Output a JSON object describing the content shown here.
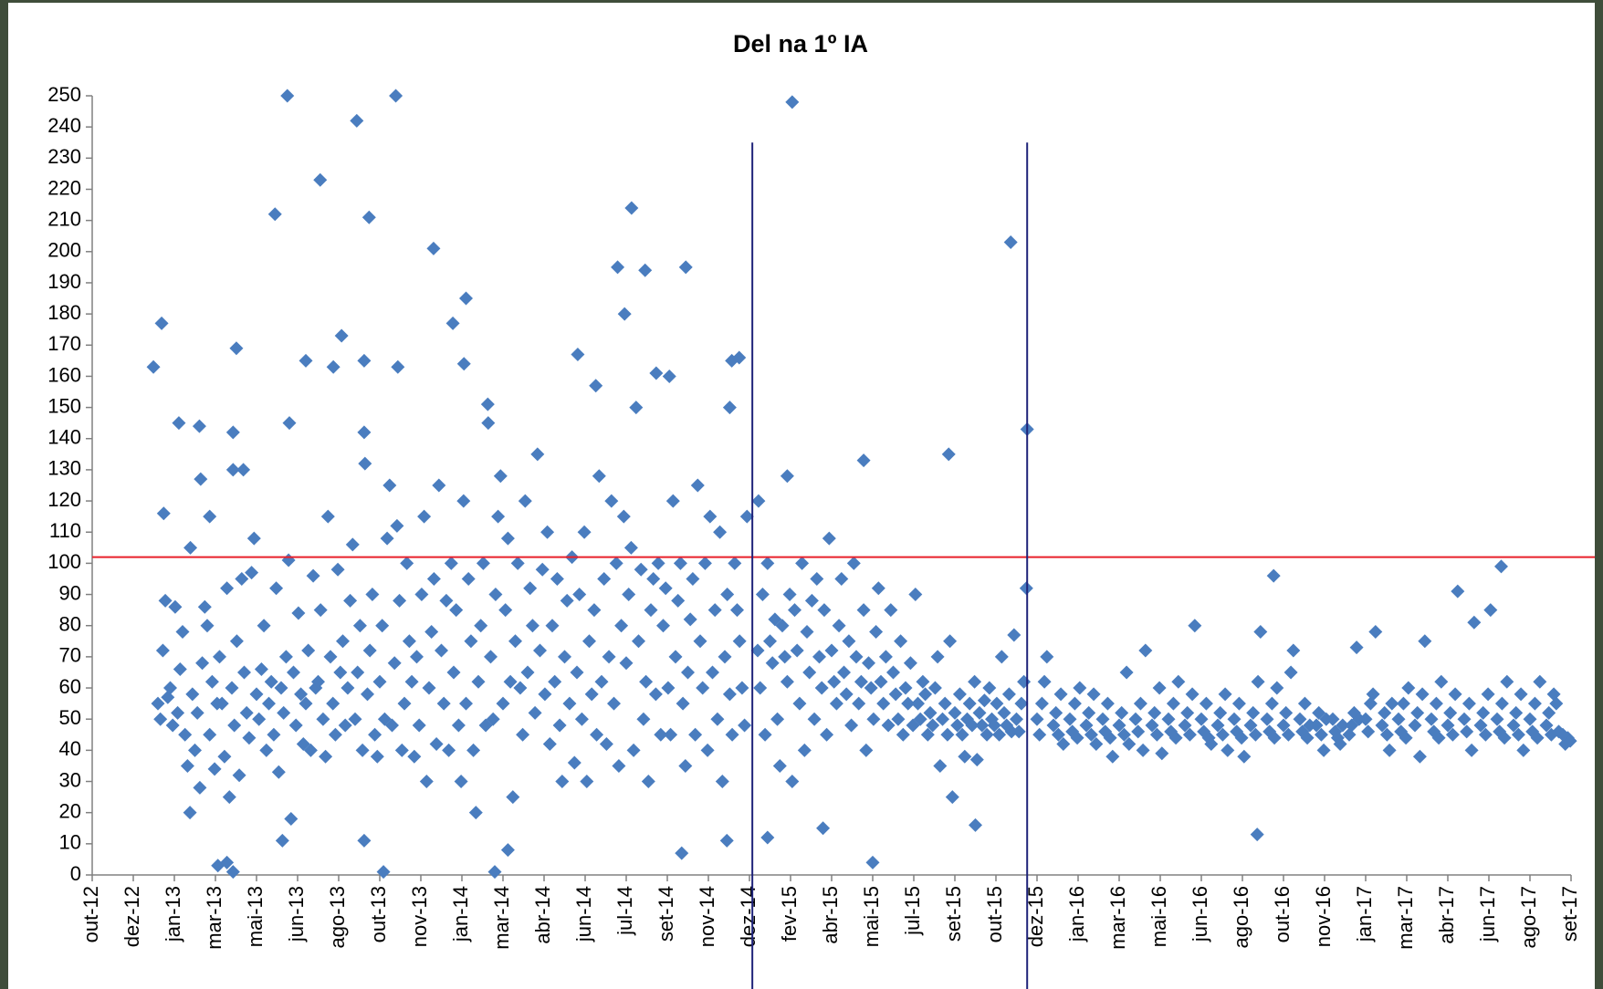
{
  "chart_data": {
    "type": "scatter",
    "title": "Del na 1º IA",
    "color": "#4a7dbf",
    "xlim": [
      0,
      36
    ],
    "xticks": [
      {
        "value": 0,
        "label": "out-12"
      },
      {
        "value": 1,
        "label": "dez-12"
      },
      {
        "value": 2,
        "label": "jan-13"
      },
      {
        "value": 3,
        "label": "mar-13"
      },
      {
        "value": 4,
        "label": "mai-13"
      },
      {
        "value": 5,
        "label": "jun-13"
      },
      {
        "value": 6,
        "label": "ago-13"
      },
      {
        "value": 7,
        "label": "out-13"
      },
      {
        "value": 8,
        "label": "nov-13"
      },
      {
        "value": 9,
        "label": "jan-14"
      },
      {
        "value": 10,
        "label": "mar-14"
      },
      {
        "value": 11,
        "label": "abr-14"
      },
      {
        "value": 12,
        "label": "jun-14"
      },
      {
        "value": 13,
        "label": "jul-14"
      },
      {
        "value": 14,
        "label": "set-14"
      },
      {
        "value": 15,
        "label": "nov-14"
      },
      {
        "value": 16,
        "label": "dez-14"
      },
      {
        "value": 17,
        "label": "fev-15"
      },
      {
        "value": 18,
        "label": "abr-15"
      },
      {
        "value": 19,
        "label": "mai-15"
      },
      {
        "value": 20,
        "label": "jul-15"
      },
      {
        "value": 21,
        "label": "set-15"
      },
      {
        "value": 22,
        "label": "out-15"
      },
      {
        "value": 23,
        "label": "dez-15"
      },
      {
        "value": 24,
        "label": "jan-16"
      },
      {
        "value": 25,
        "label": "mar-16"
      },
      {
        "value": 26,
        "label": "mai-16"
      },
      {
        "value": 27,
        "label": "jun-16"
      },
      {
        "value": 28,
        "label": "ago-16"
      },
      {
        "value": 29,
        "label": "out-16"
      },
      {
        "value": 30,
        "label": "nov-16"
      },
      {
        "value": 31,
        "label": "jan-17"
      },
      {
        "value": 32,
        "label": "mar-17"
      },
      {
        "value": 33,
        "label": "abr-17"
      },
      {
        "value": 34,
        "label": "jun-17"
      },
      {
        "value": 35,
        "label": "ago-17"
      },
      {
        "value": 36,
        "label": "set-17"
      }
    ],
    "ylim": [
      0,
      250
    ],
    "yticks": [
      0,
      10,
      20,
      30,
      40,
      50,
      60,
      70,
      80,
      90,
      100,
      110,
      120,
      130,
      140,
      150,
      160,
      170,
      180,
      190,
      200,
      210,
      220,
      230,
      240,
      250
    ],
    "hlines": [
      {
        "value": 102,
        "color": "#e8202a"
      }
    ],
    "vlines": [
      {
        "value": 16.07,
        "color": "#1f237a"
      },
      {
        "value": 22.76,
        "color": "#1f237a"
      }
    ],
    "vline_top": 235,
    "x": [
      1.49,
      1.69,
      1.74,
      2.11,
      2.61,
      2.64,
      2.39,
      2.86,
      3.43,
      3.43,
      3.68,
      3.51,
      4.45,
      4.75,
      4.8,
      5.2,
      5.55,
      5.87,
      6.07,
      6.44,
      6.62,
      6.74,
      6.62,
      7.39,
      7.44,
      8.31,
      8.78,
      9.1,
      9.05,
      9.63,
      11.82,
      12.26,
      12.79,
      12.96,
      13.13,
      13.46,
      14.45,
      13.73,
      14.05,
      15.57,
      15.75,
      15.52,
      17.04,
      20.85,
      22.36,
      22.76,
      18.78,
      16.92,
      16.22,
      28.76,
      34.3,
      28.36,
      19.0,
      21.5,
      3.06,
      3.28,
      3.43,
      7.09,
      9.8,
      10.12,
      4.63,
      6.62,
      14.35,
      15.45,
      16.44,
      17.79,
      1.6,
      1.66,
      1.72,
      1.78,
      1.84,
      1.9,
      1.96,
      2.02,
      2.08,
      2.14,
      2.2,
      2.26,
      2.32,
      2.38,
      2.44,
      2.5,
      2.56,
      2.62,
      2.68,
      2.74,
      2.8,
      2.86,
      2.92,
      2.98,
      3.04,
      3.1,
      3.16,
      3.22,
      3.28,
      3.34,
      3.4,
      3.46,
      3.52,
      3.58,
      3.64,
      3.7,
      3.76,
      3.82,
      3.88,
      3.94,
      4.0,
      4.06,
      4.12,
      4.18,
      4.24,
      4.3,
      4.36,
      4.42,
      4.48,
      4.54,
      4.6,
      4.66,
      4.72,
      4.78,
      4.84,
      4.9,
      4.96,
      5.02,
      5.08,
      5.14,
      5.2,
      5.26,
      5.32,
      5.38,
      5.44,
      5.5,
      5.56,
      5.62,
      5.68,
      5.74,
      5.8,
      5.86,
      5.92,
      5.98,
      6.04,
      6.1,
      6.16,
      6.22,
      6.28,
      6.34,
      6.4,
      6.46,
      6.52,
      6.58,
      6.64,
      6.7,
      6.76,
      6.82,
      6.88,
      6.94,
      7.0,
      7.06,
      7.12,
      7.18,
      7.24,
      7.3,
      7.36,
      7.42,
      7.48,
      7.54,
      7.6,
      7.66,
      7.72,
      7.78,
      7.84,
      7.9,
      7.96,
      8.02,
      8.08,
      8.14,
      8.2,
      8.26,
      8.32,
      8.38,
      8.44,
      8.5,
      8.56,
      8.62,
      8.68,
      8.74,
      8.8,
      8.86,
      8.92,
      8.98,
      9.04,
      9.1,
      9.16,
      9.22,
      9.28,
      9.34,
      9.4,
      9.46,
      9.52,
      9.58,
      9.64,
      9.7,
      9.76,
      9.82,
      9.88,
      9.94,
      10.0,
      10.06,
      10.12,
      10.18,
      10.24,
      10.3,
      10.36,
      10.42,
      10.48,
      10.54,
      10.6,
      10.66,
      10.72,
      10.78,
      10.84,
      10.9,
      10.96,
      11.02,
      11.08,
      11.14,
      11.2,
      11.26,
      11.32,
      11.38,
      11.44,
      11.5,
      11.56,
      11.62,
      11.68,
      11.74,
      11.8,
      11.86,
      11.92,
      11.98,
      12.04,
      12.1,
      12.16,
      12.22,
      12.28,
      12.34,
      12.4,
      12.46,
      12.52,
      12.58,
      12.64,
      12.7,
      12.76,
      12.82,
      12.88,
      12.94,
      13.0,
      13.06,
      13.12,
      13.18,
      13.24,
      13.3,
      13.36,
      13.42,
      13.48,
      13.54,
      13.6,
      13.66,
      13.72,
      13.78,
      13.84,
      13.9,
      13.96,
      14.02,
      14.08,
      14.14,
      14.2,
      14.26,
      14.32,
      14.38,
      14.44,
      14.5,
      14.56,
      14.62,
      14.68,
      14.74,
      14.8,
      14.86,
      14.92,
      14.98,
      15.04,
      15.1,
      15.16,
      15.22,
      15.28,
      15.34,
      15.4,
      15.46,
      15.52,
      15.58,
      15.64,
      15.7,
      15.76,
      15.82,
      15.88,
      15.94,
      16.2,
      16.26,
      16.32,
      16.38,
      16.44,
      16.5,
      16.56,
      16.62,
      16.68,
      16.74,
      16.8,
      16.86,
      16.92,
      16.98,
      17.04,
      17.1,
      17.16,
      17.22,
      17.28,
      17.34,
      17.4,
      17.46,
      17.52,
      17.58,
      17.64,
      17.7,
      17.76,
      17.82,
      17.88,
      17.94,
      18.0,
      18.06,
      18.12,
      18.18,
      18.24,
      18.3,
      18.36,
      18.42,
      18.48,
      18.54,
      18.6,
      18.66,
      18.72,
      18.78,
      18.84,
      18.9,
      18.96,
      19.02,
      19.08,
      19.14,
      19.2,
      19.26,
      19.32,
      19.38,
      19.44,
      19.5,
      19.56,
      19.62,
      19.68,
      19.74,
      19.8,
      19.86,
      19.92,
      19.98,
      20.04,
      20.1,
      20.16,
      20.22,
      20.28,
      20.34,
      20.4,
      20.46,
      20.52,
      20.58,
      20.64,
      20.7,
      20.76,
      20.82,
      20.88,
      20.94,
      21.0,
      21.06,
      21.12,
      21.18,
      21.24,
      21.3,
      21.36,
      21.42,
      21.48,
      21.54,
      21.6,
      21.66,
      21.72,
      21.78,
      21.84,
      21.9,
      21.96,
      22.02,
      22.08,
      22.14,
      22.2,
      22.26,
      22.32,
      22.38,
      22.44,
      22.5,
      22.56,
      22.62,
      22.68,
      22.74,
      23.0,
      23.06,
      23.12,
      23.18,
      23.24,
      23.4,
      23.46,
      23.52,
      23.58,
      23.64,
      23.8,
      23.86,
      23.92,
      23.98,
      24.04,
      24.2,
      24.26,
      24.32,
      24.38,
      24.44,
      24.6,
      24.66,
      24.72,
      24.78,
      24.84,
      25.0,
      25.06,
      25.12,
      25.18,
      25.24,
      25.4,
      25.46,
      25.52,
      25.58,
      25.64,
      25.8,
      25.86,
      25.92,
      25.98,
      26.04,
      26.2,
      26.26,
      26.32,
      26.38,
      26.44,
      26.6,
      26.66,
      26.72,
      26.78,
      26.84,
      27.0,
      27.06,
      27.12,
      27.18,
      27.24,
      27.4,
      27.46,
      27.52,
      27.58,
      27.64,
      27.8,
      27.86,
      27.92,
      27.98,
      28.04,
      28.2,
      28.26,
      28.32,
      28.38,
      28.44,
      28.6,
      28.66,
      28.72,
      28.78,
      28.84,
      29.0,
      29.06,
      29.12,
      29.18,
      29.24,
      29.4,
      29.46,
      29.52,
      29.58,
      29.64,
      29.8,
      29.86,
      29.92,
      29.98,
      30.04,
      30.2,
      30.26,
      30.32,
      30.38,
      30.44,
      30.6,
      30.66,
      30.72,
      30.78,
      30.84,
      31.0,
      31.06,
      31.12,
      31.18,
      31.24,
      31.4,
      31.46,
      31.52,
      31.58,
      31.64,
      31.8,
      31.86,
      31.92,
      31.98,
      32.04,
      32.2,
      32.26,
      32.32,
      32.38,
      32.44,
      32.6,
      32.66,
      32.72,
      32.78,
      32.84,
      33.0,
      33.06,
      33.12,
      33.18,
      33.24,
      33.4,
      33.46,
      33.52,
      33.58,
      33.64,
      33.8,
      33.86,
      33.92,
      33.98,
      34.04,
      34.2,
      34.26,
      34.32,
      34.38,
      34.44,
      34.6,
      34.66,
      34.72,
      34.78,
      34.84,
      35.0,
      35.06,
      35.12,
      35.18,
      35.24,
      35.4,
      35.46,
      35.52,
      35.58,
      35.64,
      35.8,
      35.86,
      35.92,
      35.98,
      35.7
    ],
    "values": [
      163,
      177,
      116,
      145,
      144,
      127,
      105,
      115,
      142,
      130,
      130,
      169,
      212,
      250,
      145,
      165,
      223,
      163,
      173,
      242,
      165,
      211,
      142,
      250,
      163,
      201,
      177,
      185,
      164,
      151,
      167,
      157,
      195,
      180,
      214,
      194,
      195,
      161,
      160,
      165,
      166,
      150,
      248,
      135,
      203,
      143,
      133,
      128,
      120,
      96,
      99,
      13,
      4,
      16,
      3,
      4,
      1,
      1,
      1,
      8,
      11,
      11,
      7,
      11,
      12,
      15,
      55,
      50,
      72,
      88,
      57,
      60,
      48,
      86,
      52,
      66,
      78,
      45,
      35,
      20,
      58,
      40,
      52,
      28,
      68,
      86,
      80,
      45,
      62,
      34,
      55,
      70,
      55,
      38,
      92,
      25,
      60,
      48,
      75,
      32,
      95,
      65,
      52,
      44,
      97,
      108,
      58,
      50,
      66,
      80,
      40,
      55,
      62,
      45,
      92,
      33,
      60,
      52,
      70,
      101,
      18,
      65,
      48,
      84,
      58,
      42,
      55,
      72,
      40,
      96,
      60,
      62,
      85,
      50,
      38,
      115,
      70,
      55,
      45,
      98,
      65,
      75,
      48,
      60,
      88,
      106,
      50,
      65,
      80,
      40,
      132,
      58,
      72,
      90,
      45,
      38,
      62,
      80,
      50,
      108,
      125,
      48,
      68,
      112,
      88,
      40,
      55,
      100,
      75,
      62,
      38,
      70,
      48,
      90,
      115,
      30,
      60,
      78,
      95,
      42,
      125,
      72,
      55,
      88,
      40,
      100,
      65,
      85,
      48,
      30,
      120,
      55,
      95,
      75,
      40,
      20,
      62,
      80,
      100,
      48,
      145,
      70,
      50,
      90,
      115,
      128,
      55,
      85,
      108,
      62,
      25,
      75,
      100,
      60,
      45,
      120,
      65,
      92,
      80,
      52,
      135,
      72,
      98,
      58,
      110,
      42,
      80,
      62,
      95,
      48,
      30,
      70,
      88,
      55,
      102,
      36,
      65,
      90,
      50,
      110,
      30,
      75,
      58,
      85,
      45,
      128,
      62,
      95,
      42,
      70,
      120,
      55,
      100,
      35,
      80,
      115,
      68,
      90,
      105,
      40,
      150,
      75,
      98,
      50,
      62,
      30,
      85,
      95,
      58,
      100,
      45,
      80,
      92,
      60,
      45,
      120,
      70,
      88,
      100,
      55,
      35,
      65,
      82,
      95,
      45,
      125,
      75,
      60,
      100,
      40,
      115,
      65,
      85,
      50,
      110,
      30,
      70,
      90,
      58,
      45,
      100,
      85,
      75,
      60,
      48,
      115,
      72,
      60,
      90,
      45,
      100,
      75,
      68,
      82,
      50,
      35,
      80,
      70,
      62,
      90,
      30,
      85,
      72,
      55,
      100,
      40,
      78,
      65,
      88,
      50,
      95,
      70,
      60,
      85,
      45,
      108,
      72,
      62,
      55,
      80,
      95,
      65,
      58,
      75,
      48,
      100,
      70,
      55,
      62,
      85,
      40,
      68,
      60,
      50,
      78,
      92,
      62,
      55,
      70,
      48,
      85,
      65,
      58,
      50,
      75,
      45,
      60,
      55,
      68,
      48,
      90,
      55,
      50,
      62,
      58,
      45,
      52,
      48,
      60,
      70,
      35,
      50,
      55,
      45,
      75,
      25,
      52,
      48,
      58,
      45,
      38,
      50,
      55,
      48,
      62,
      37,
      52,
      48,
      56,
      45,
      60,
      50,
      48,
      55,
      45,
      70,
      52,
      48,
      58,
      46,
      77,
      50,
      46,
      55,
      62,
      92,
      50,
      45,
      55,
      62,
      70,
      48,
      52,
      45,
      58,
      42,
      50,
      46,
      55,
      44,
      60,
      48,
      52,
      45,
      58,
      42,
      50,
      46,
      55,
      44,
      38,
      48,
      52,
      45,
      65,
      42,
      50,
      46,
      55,
      40,
      72,
      48,
      52,
      45,
      60,
      39,
      50,
      46,
      55,
      44,
      62,
      48,
      52,
      45,
      58,
      80,
      50,
      46,
      55,
      44,
      42,
      48,
      52,
      45,
      58,
      40,
      50,
      46,
      55,
      44,
      38,
      48,
      52,
      45,
      62,
      78,
      50,
      46,
      55,
      44,
      60,
      48,
      52,
      45,
      65,
      72,
      50,
      46,
      55,
      44,
      48,
      48,
      52,
      45,
      40,
      50,
      50,
      46,
      44,
      42,
      48,
      45,
      48,
      52,
      73,
      50,
      50,
      46,
      55,
      58,
      78,
      48,
      52,
      45,
      40,
      55,
      50,
      46,
      55,
      44,
      60,
      48,
      52,
      38,
      58,
      75,
      50,
      46,
      55,
      44,
      62,
      48,
      52,
      45,
      58,
      91,
      50,
      46,
      55,
      40,
      81,
      48,
      52,
      45,
      58,
      85,
      50,
      46,
      55,
      44,
      62,
      48,
      52,
      45,
      58,
      40,
      50,
      46,
      55,
      44,
      62,
      48,
      52,
      45,
      58,
      55,
      45,
      42,
      44,
      43,
      46
    ]
  }
}
